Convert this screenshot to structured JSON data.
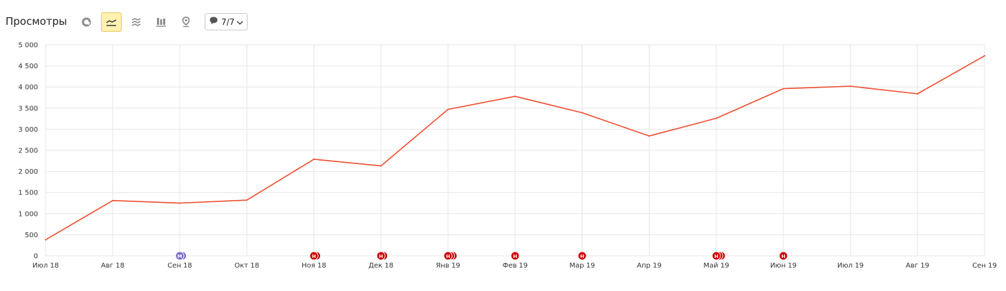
{
  "toolbar": {
    "title": "Просмотры",
    "icons": [
      "pie-chart-icon",
      "line-chart-icon",
      "area-chart-icon",
      "bar-chart-icon",
      "map-pin-icon"
    ],
    "active_icon": "line-chart-icon",
    "notes_icon": "comment-icon",
    "notes_label": "7/7",
    "chevron_icon": "chevron-down-icon"
  },
  "colors": {
    "line": "#ef4b2c",
    "annotation_red": "#cc0000",
    "annotation_purple": "#7b68c9",
    "active_button_bg": "#fff1b0",
    "grid": "#e6e6e6"
  },
  "chart_data": {
    "type": "line",
    "title": "",
    "xlabel": "",
    "ylabel": "",
    "ylim": [
      0,
      5000
    ],
    "yticks": [
      "0",
      "500",
      "1 000",
      "1 500",
      "2 000",
      "2 500",
      "3 000",
      "3 500",
      "4 000",
      "4 500",
      "5 000"
    ],
    "categories": [
      "Июл 18",
      "Авг 18",
      "Сен 18",
      "Окт 18",
      "Ноя 18",
      "Дек 18",
      "Янв 19",
      "Фев 19",
      "Мар 19",
      "Апр 19",
      "Май 19",
      "Июн 19",
      "Июл 19",
      "Авг 19",
      "Сен 19"
    ],
    "grid": true,
    "series": [
      {
        "values": [
          380,
          1310,
          1250,
          1320,
          2290,
          2130,
          3470,
          3780,
          3390,
          2840,
          3260,
          3960,
          4020,
          3840,
          4740
        ]
      }
    ],
    "annotations": [
      {
        "category": "Сен 18",
        "label": "М",
        "count": 2,
        "color": "#7b68c9"
      },
      {
        "category": "Ноя 18",
        "label": "Н",
        "count": 2,
        "color": "#cc0000"
      },
      {
        "category": "Дек 18",
        "label": "Н",
        "count": 2,
        "color": "#cc0000"
      },
      {
        "category": "Янв 19",
        "label": "Н",
        "count": 3,
        "color": "#cc0000"
      },
      {
        "category": "Фев 19",
        "label": "Н",
        "count": 1,
        "color": "#cc0000"
      },
      {
        "category": "Мар 19",
        "label": "Н",
        "count": 1,
        "color": "#cc0000"
      },
      {
        "category": "Май 19",
        "label": "Н",
        "count": 3,
        "color": "#cc0000"
      },
      {
        "category": "Июн 19",
        "label": "Н",
        "count": 1,
        "color": "#cc0000"
      }
    ]
  }
}
